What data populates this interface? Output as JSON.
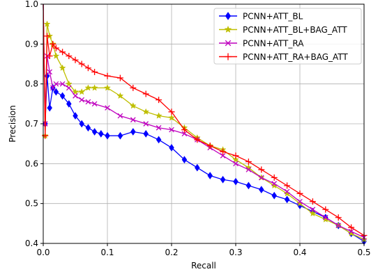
{
  "chart_data": {
    "type": "line",
    "xlabel": "Recall",
    "ylabel": "Precision",
    "xlim": [
      0,
      0.5
    ],
    "ylim": [
      0.4,
      1.0
    ],
    "xticks": [
      "0.0",
      "0.1",
      "0.2",
      "0.3",
      "0.4",
      "0.5"
    ],
    "yticks": [
      "0.4",
      "0.5",
      "0.6",
      "0.7",
      "0.8",
      "0.9",
      "1.0"
    ],
    "grid": true,
    "legend_position": "top-right",
    "series": [
      {
        "name": "PCNN+ATT_BL",
        "color": "#0000ff",
        "marker": "diamond",
        "x": [
          0.0,
          0.003,
          0.006,
          0.01,
          0.015,
          0.02,
          0.03,
          0.04,
          0.05,
          0.06,
          0.07,
          0.08,
          0.09,
          0.1,
          0.12,
          0.14,
          0.16,
          0.18,
          0.2,
          0.22,
          0.24,
          0.26,
          0.28,
          0.3,
          0.32,
          0.34,
          0.36,
          0.38,
          0.4,
          0.42,
          0.44,
          0.46,
          0.48,
          0.5
        ],
        "values": [
          1.0,
          0.7,
          0.82,
          0.74,
          0.79,
          0.78,
          0.77,
          0.75,
          0.72,
          0.7,
          0.69,
          0.68,
          0.675,
          0.67,
          0.67,
          0.68,
          0.675,
          0.66,
          0.64,
          0.61,
          0.59,
          0.57,
          0.56,
          0.555,
          0.545,
          0.535,
          0.52,
          0.51,
          0.495,
          0.48,
          0.465,
          0.445,
          0.425,
          0.405
        ]
      },
      {
        "name": "PCNN+ATT_BL+BAG_ATT",
        "color": "#bfbf00",
        "marker": "star",
        "x": [
          0.0,
          0.003,
          0.006,
          0.01,
          0.015,
          0.02,
          0.03,
          0.04,
          0.05,
          0.06,
          0.07,
          0.08,
          0.1,
          0.12,
          0.14,
          0.16,
          0.18,
          0.2,
          0.22,
          0.24,
          0.26,
          0.28,
          0.3,
          0.32,
          0.34,
          0.36,
          0.38,
          0.4,
          0.42,
          0.44,
          0.46,
          0.48,
          0.5
        ],
        "values": [
          1.0,
          0.67,
          0.95,
          0.92,
          0.9,
          0.87,
          0.84,
          0.8,
          0.78,
          0.78,
          0.79,
          0.79,
          0.79,
          0.77,
          0.745,
          0.73,
          0.72,
          0.715,
          0.69,
          0.665,
          0.645,
          0.635,
          0.61,
          0.59,
          0.565,
          0.545,
          0.525,
          0.5,
          0.475,
          0.46,
          0.445,
          0.425,
          0.41
        ]
      },
      {
        "name": "PCNN+ATT_RA",
        "color": "#bf00bf",
        "marker": "x",
        "x": [
          0.0,
          0.003,
          0.006,
          0.01,
          0.015,
          0.02,
          0.03,
          0.04,
          0.05,
          0.06,
          0.07,
          0.08,
          0.1,
          0.12,
          0.14,
          0.16,
          0.18,
          0.2,
          0.22,
          0.24,
          0.26,
          0.28,
          0.3,
          0.32,
          0.34,
          0.36,
          0.38,
          0.4,
          0.42,
          0.44,
          0.46,
          0.48,
          0.5
        ],
        "values": [
          1.0,
          0.7,
          0.87,
          0.83,
          0.79,
          0.8,
          0.8,
          0.79,
          0.77,
          0.76,
          0.755,
          0.75,
          0.74,
          0.72,
          0.71,
          0.7,
          0.69,
          0.685,
          0.675,
          0.66,
          0.64,
          0.62,
          0.6,
          0.585,
          0.565,
          0.55,
          0.53,
          0.505,
          0.485,
          0.465,
          0.445,
          0.43,
          0.415
        ]
      },
      {
        "name": "PCNN+ATT_RA+BAG_ATT",
        "color": "#ff0000",
        "marker": "plus",
        "x": [
          0.0,
          0.003,
          0.006,
          0.01,
          0.015,
          0.02,
          0.03,
          0.04,
          0.05,
          0.06,
          0.07,
          0.08,
          0.1,
          0.12,
          0.14,
          0.16,
          0.18,
          0.2,
          0.22,
          0.24,
          0.26,
          0.28,
          0.3,
          0.32,
          0.34,
          0.36,
          0.38,
          0.4,
          0.42,
          0.44,
          0.46,
          0.48,
          0.5
        ],
        "values": [
          1.0,
          0.67,
          0.92,
          0.87,
          0.9,
          0.89,
          0.88,
          0.87,
          0.86,
          0.85,
          0.84,
          0.83,
          0.82,
          0.815,
          0.79,
          0.775,
          0.76,
          0.73,
          0.685,
          0.66,
          0.645,
          0.63,
          0.62,
          0.605,
          0.585,
          0.565,
          0.545,
          0.525,
          0.505,
          0.485,
          0.465,
          0.44,
          0.42
        ]
      }
    ]
  }
}
